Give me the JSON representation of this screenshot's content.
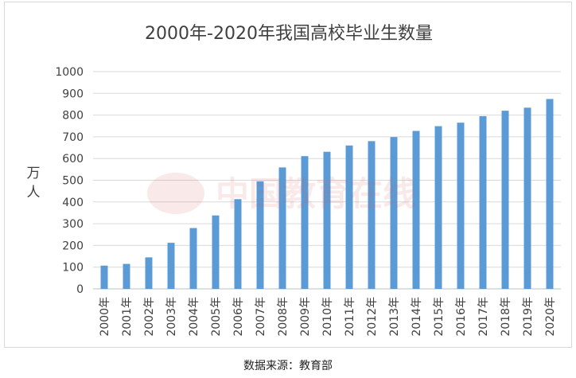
{
  "chart_data": {
    "type": "bar",
    "title": "2000年-2020年我国高校毕业生数量",
    "ylabel": "万人",
    "xlabel": "",
    "ylim": [
      0,
      1000
    ],
    "yticks": [
      0,
      100,
      200,
      300,
      400,
      500,
      600,
      700,
      800,
      900,
      1000
    ],
    "grid": true,
    "legend": "none",
    "bar_color": "#5b9bd5",
    "categories": [
      "2000年",
      "2001年",
      "2002年",
      "2003年",
      "2004年",
      "2005年",
      "2006年",
      "2007年",
      "2008年",
      "2009年",
      "2010年",
      "2011年",
      "2012年",
      "2013年",
      "2014年",
      "2015年",
      "2016年",
      "2017年",
      "2018年",
      "2019年",
      "2020年"
    ],
    "values": [
      107,
      115,
      145,
      212,
      280,
      338,
      413,
      495,
      559,
      611,
      631,
      660,
      680,
      699,
      727,
      749,
      765,
      795,
      820,
      834,
      874
    ]
  },
  "source_note": "数据来源：教育部",
  "watermark_text": "中国教育在线"
}
